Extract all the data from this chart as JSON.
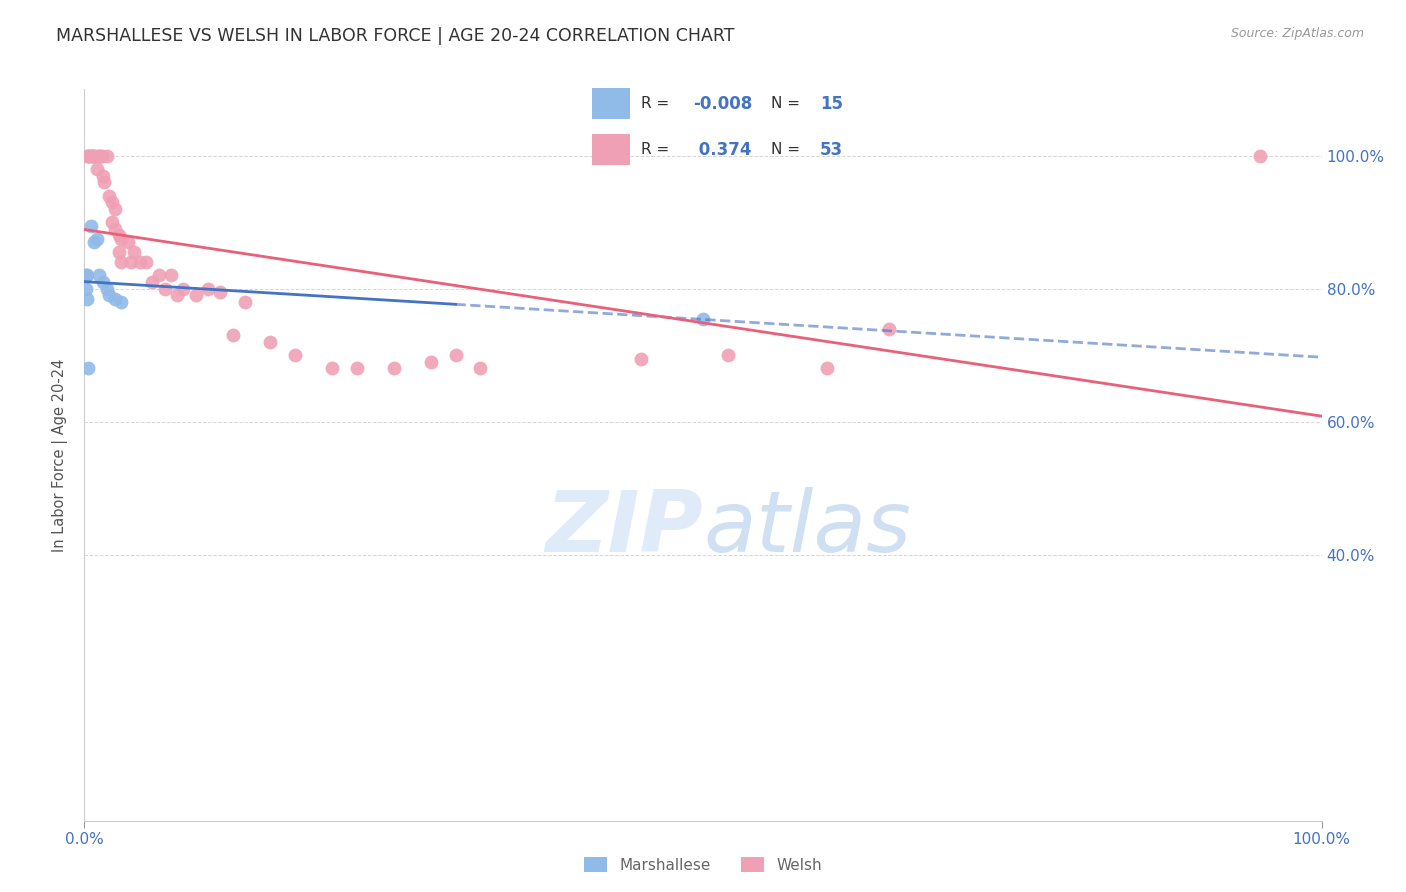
{
  "title": "MARSHALLESE VS WELSH IN LABOR FORCE | AGE 20-24 CORRELATION CHART",
  "source": "Source: ZipAtlas.com",
  "ylabel": "In Labor Force | Age 20-24",
  "xlim": [
    0.0,
    1.0
  ],
  "ylim": [
    0.0,
    1.1
  ],
  "ytick_positions": [
    0.0,
    0.2,
    0.4,
    0.6,
    0.8,
    1.0
  ],
  "ytick_labels_right": [
    "",
    "",
    "40.0%",
    "60.0%",
    "80.0%",
    "100.0%"
  ],
  "grid_color": "#cccccc",
  "background_color": "#ffffff",
  "marshallese_color": "#90BAE8",
  "welsh_color": "#F0A0B5",
  "marshallese_line_color": "#4472C4",
  "welsh_line_color": "#E8607A",
  "legend_R_marshallese": "-0.008",
  "legend_N_marshallese": "15",
  "legend_R_welsh": "0.374",
  "legend_N_welsh": "53",
  "watermark_zip": "ZIP",
  "watermark_atlas": "atlas",
  "marshallese_x": [
    0.002,
    0.005,
    0.008,
    0.01,
    0.012,
    0.015,
    0.018,
    0.02,
    0.025,
    0.03,
    0.001,
    0.001,
    0.002,
    0.003,
    0.5
  ],
  "marshallese_y": [
    0.82,
    0.895,
    0.87,
    0.875,
    0.82,
    0.81,
    0.8,
    0.79,
    0.785,
    0.78,
    0.82,
    0.8,
    0.785,
    0.68,
    0.755
  ],
  "welsh_x": [
    0.002,
    0.003,
    0.004,
    0.005,
    0.006,
    0.007,
    0.008,
    0.01,
    0.01,
    0.012,
    0.013,
    0.014,
    0.015,
    0.016,
    0.018,
    0.02,
    0.022,
    0.022,
    0.025,
    0.025,
    0.028,
    0.028,
    0.03,
    0.03,
    0.035,
    0.038,
    0.04,
    0.045,
    0.05,
    0.055,
    0.06,
    0.065,
    0.07,
    0.075,
    0.08,
    0.09,
    0.1,
    0.11,
    0.12,
    0.13,
    0.15,
    0.17,
    0.2,
    0.22,
    0.25,
    0.28,
    0.3,
    0.32,
    0.45,
    0.52,
    0.6,
    0.65,
    0.95
  ],
  "welsh_y": [
    1.0,
    1.0,
    1.0,
    1.0,
    1.0,
    1.0,
    1.0,
    1.0,
    0.98,
    1.0,
    1.0,
    1.0,
    0.97,
    0.96,
    1.0,
    0.94,
    0.93,
    0.9,
    0.92,
    0.89,
    0.88,
    0.855,
    0.875,
    0.84,
    0.87,
    0.84,
    0.855,
    0.84,
    0.84,
    0.81,
    0.82,
    0.8,
    0.82,
    0.79,
    0.8,
    0.79,
    0.8,
    0.795,
    0.73,
    0.78,
    0.72,
    0.7,
    0.68,
    0.68,
    0.68,
    0.69,
    0.7,
    0.68,
    0.695,
    0.7,
    0.68,
    0.74,
    1.0
  ],
  "marshallese_line_solid_end": 0.3,
  "welsh_line_start": 0.0,
  "welsh_line_end": 1.0
}
